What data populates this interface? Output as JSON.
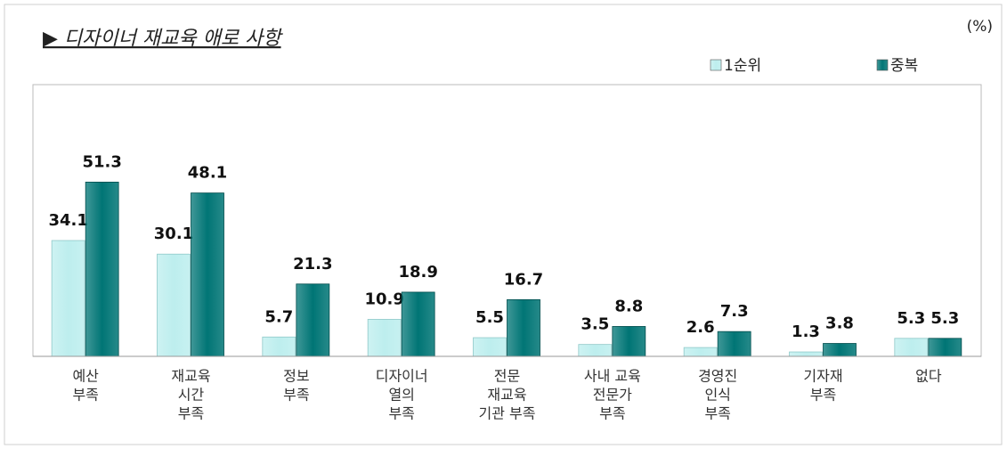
{
  "chart_data": {
    "type": "bar",
    "title": "▶  디자이너 재교육 애로 사항",
    "unit": "(%)",
    "categories": [
      [
        "예산",
        "부족"
      ],
      [
        "재교육",
        "시간",
        "부족"
      ],
      [
        "정보",
        "부족"
      ],
      [
        "디자이너",
        "열의",
        "부족"
      ],
      [
        "전문",
        "재교육",
        "기관 부족"
      ],
      [
        "사내 교육",
        "전문가",
        "부족"
      ],
      [
        "경영진",
        "인식",
        "부족"
      ],
      [
        "기자재",
        "부족"
      ],
      [
        "없다"
      ]
    ],
    "series": [
      {
        "name": "1순위",
        "color": "#bdeeee",
        "values": [
          34.1,
          30.1,
          5.7,
          10.9,
          5.5,
          3.5,
          2.6,
          1.3,
          5.3
        ]
      },
      {
        "name": "중복",
        "color": "#007575",
        "values": [
          51.3,
          48.1,
          21.3,
          18.9,
          16.7,
          8.8,
          7.3,
          3.8,
          5.3
        ]
      }
    ],
    "ylim": [
      0,
      80
    ]
  }
}
